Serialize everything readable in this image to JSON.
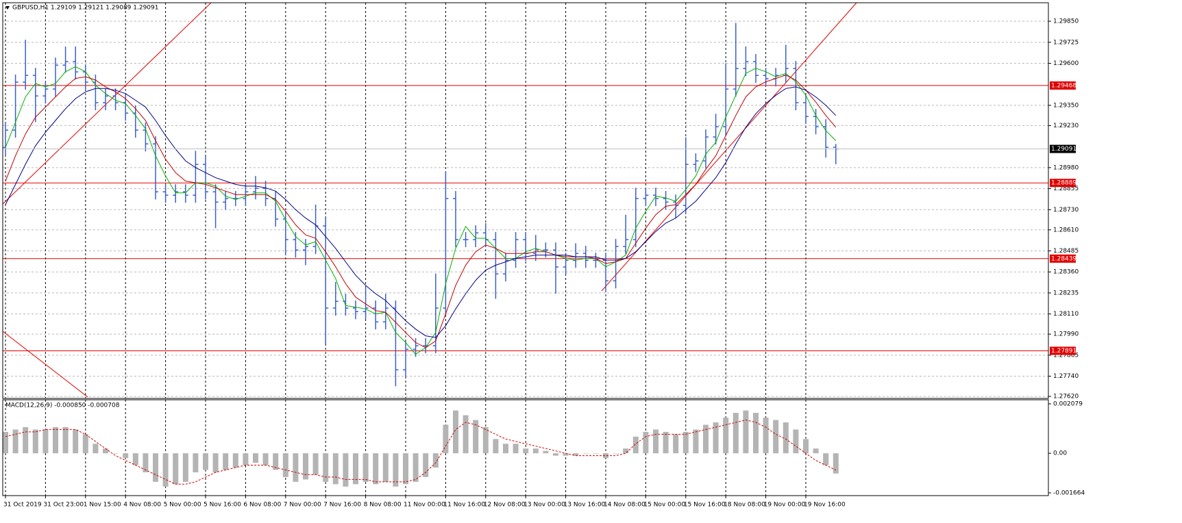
{
  "chart_data": [
    {
      "type": "ohlc",
      "title": "GBPUSD,H1  1.29109 1.29121 1.29089 1.29091",
      "color": "#3a5fcd",
      "categories": [
        "31 Oct 2019",
        null,
        null,
        null,
        "31 Oct 23:00",
        null,
        null,
        null,
        "1 Nov 15:00",
        null,
        null,
        null,
        "4 Nov 08:00",
        null,
        null,
        null,
        "5 Nov 00:00",
        null,
        null,
        null,
        "5 Nov 16:00",
        null,
        null,
        null,
        "6 Nov 08:00",
        null,
        null,
        null,
        "7 Nov 00:00",
        null,
        null,
        null,
        "7 Nov 16:00",
        null,
        null,
        null,
        "8 Nov 08:00",
        null,
        null,
        null,
        "11 Nov 00:00",
        null,
        null,
        null,
        "11 Nov 16:00",
        null,
        null,
        null,
        "12 Nov 08:00",
        null,
        null,
        null,
        "13 Nov 00:00",
        null,
        null,
        null,
        "13 Nov 16:00",
        null,
        null,
        null,
        "14 Nov 08:00",
        null,
        null,
        null,
        "15 Nov 00:00",
        null,
        null,
        null,
        "15 Nov 16:00",
        null,
        null,
        null,
        "18 Nov 08:00",
        null,
        null,
        null,
        "19 Nov 00:00",
        null,
        null,
        null,
        "19 Nov 16:00",
        null,
        null,
        null
      ],
      "open": [
        1.291,
        1.29203,
        1.29488,
        1.29528,
        1.29406,
        1.29447,
        1.29589,
        1.2961,
        1.29549,
        1.29488,
        1.29366,
        1.29406,
        1.29366,
        1.29304,
        1.29203,
        1.29121,
        1.28836,
        1.28816,
        1.28836,
        1.28816,
        1.28999,
        1.28836,
        1.28775,
        1.28796,
        1.28796,
        1.28836,
        1.28857,
        1.28796,
        1.28674,
        1.28552,
        1.2849,
        1.28511,
        1.28633,
        1.28145,
        1.28185,
        1.28145,
        1.28124,
        1.28145,
        1.28063,
        1.28145,
        1.27778,
        1.279,
        1.27921,
        1.27921,
        1.28145,
        1.28796,
        1.28552,
        1.28552,
        1.28592,
        1.28552,
        1.28348,
        1.28429,
        1.28552,
        1.2847,
        1.2849,
        1.2849,
        1.28389,
        1.28429,
        1.2847,
        1.28429,
        1.28429,
        1.28307,
        1.28511,
        1.28552,
        1.28796,
        1.28816,
        1.28796,
        1.28775,
        1.28755,
        1.28999,
        1.2902,
        1.29162,
        1.29223,
        1.29447,
        1.29569,
        1.2961,
        1.29528,
        1.29508,
        1.29528,
        1.29569,
        1.29366,
        1.29284,
        1.29223,
        1.29101
      ],
      "high": [
        1.29248,
        1.29533,
        1.2974,
        1.29573,
        1.29492,
        1.29634,
        1.297,
        1.297,
        1.29594,
        1.29533,
        1.29451,
        1.29451,
        1.29411,
        1.29349,
        1.29248,
        1.29166,
        1.28881,
        1.28881,
        1.28881,
        1.2908,
        1.29044,
        1.28881,
        1.28841,
        1.28841,
        1.28881,
        1.2893,
        1.28902,
        1.28841,
        1.28719,
        1.28597,
        1.28556,
        1.2876,
        1.28678,
        1.283,
        1.2823,
        1.2819,
        1.2827,
        1.2819,
        1.2823,
        1.2819,
        1.27945,
        1.27966,
        1.27966,
        1.2835,
        1.28958,
        1.28841,
        1.28597,
        1.28637,
        1.2865,
        1.28597,
        1.28474,
        1.28597,
        1.28597,
        1.2858,
        1.28535,
        1.28535,
        1.28474,
        1.2853,
        1.28515,
        1.28474,
        1.28474,
        1.28556,
        1.287,
        1.2886,
        1.28861,
        1.28861,
        1.28841,
        1.2882,
        1.2916,
        1.29065,
        1.29207,
        1.293,
        1.296,
        1.2984,
        1.297,
        1.29655,
        1.29573,
        1.29573,
        1.2971,
        1.29614,
        1.29411,
        1.29329,
        1.29268,
        1.29121
      ],
      "low": [
        1.29055,
        1.29158,
        1.29443,
        1.2925,
        1.29361,
        1.29402,
        1.29544,
        1.29504,
        1.29443,
        1.29321,
        1.29321,
        1.29321,
        1.29259,
        1.29158,
        1.29076,
        1.28791,
        1.28771,
        1.28771,
        1.28771,
        1.28771,
        1.28791,
        1.2862,
        1.2873,
        1.28751,
        1.28751,
        1.28791,
        1.28751,
        1.28629,
        1.2846,
        1.28445,
        1.284,
        1.28466,
        1.2793,
        1.281,
        1.281,
        1.28079,
        1.28079,
        1.28018,
        1.28018,
        1.2768,
        1.27733,
        1.27855,
        1.27876,
        1.27876,
        1.281,
        1.28507,
        1.28507,
        1.28507,
        1.28507,
        1.282,
        1.28303,
        1.28384,
        1.28425,
        1.28425,
        1.28445,
        1.2823,
        1.28344,
        1.28384,
        1.28384,
        1.28384,
        1.2824,
        1.28262,
        1.28466,
        1.28507,
        1.28751,
        1.28751,
        1.2873,
        1.2868,
        1.2871,
        1.28954,
        1.28975,
        1.29117,
        1.29178,
        1.29402,
        1.29524,
        1.29483,
        1.29463,
        1.29463,
        1.29483,
        1.29321,
        1.29239,
        1.29178,
        1.2904,
        1.29
      ],
      "close": [
        1.29203,
        1.29488,
        1.29528,
        1.29406,
        1.29447,
        1.29589,
        1.2961,
        1.29549,
        1.29488,
        1.29366,
        1.29406,
        1.29366,
        1.29304,
        1.29203,
        1.29121,
        1.28836,
        1.28816,
        1.28836,
        1.28816,
        1.28999,
        1.28836,
        1.28775,
        1.28796,
        1.28796,
        1.28836,
        1.28857,
        1.28796,
        1.28674,
        1.28552,
        1.2849,
        1.28511,
        1.28633,
        1.28145,
        1.28185,
        1.28145,
        1.28124,
        1.28145,
        1.28063,
        1.28145,
        1.27778,
        1.279,
        1.27921,
        1.27921,
        1.28145,
        1.28796,
        1.28552,
        1.28552,
        1.28592,
        1.28552,
        1.28348,
        1.28429,
        1.28552,
        1.2847,
        1.2849,
        1.2849,
        1.28389,
        1.28429,
        1.2847,
        1.28429,
        1.28429,
        1.28307,
        1.28511,
        1.28552,
        1.28796,
        1.28816,
        1.28796,
        1.28775,
        1.28755,
        1.28999,
        1.2902,
        1.29162,
        1.29223,
        1.29447,
        1.29569,
        1.2961,
        1.29528,
        1.29508,
        1.29528,
        1.29569,
        1.29366,
        1.29284,
        1.29223,
        1.29101,
        1.29091
      ],
      "moving_averages": [
        {
          "color": "#00b000",
          "values": [
            1.291,
            1.2925,
            1.294,
            1.2948,
            1.2946,
            1.2948,
            1.2955,
            1.2958,
            1.2955,
            1.2947,
            1.2942,
            1.2938,
            1.2936,
            1.2929,
            1.2921,
            1.2905,
            1.2893,
            1.2883,
            1.2883,
            1.2889,
            1.2889,
            1.2887,
            1.2881,
            1.2879,
            1.2881,
            1.2883,
            1.2883,
            1.2878,
            1.2867,
            1.2857,
            1.2852,
            1.2854,
            1.2843,
            1.2832,
            1.2816,
            1.2815,
            1.2814,
            1.2811,
            1.2812,
            1.28,
            1.2794,
            1.2787,
            1.2791,
            1.28,
            1.2829,
            1.285,
            1.2863,
            1.2856,
            1.2856,
            1.285,
            1.2844,
            1.2844,
            1.2848,
            1.285,
            1.2848,
            1.2846,
            1.2844,
            1.2843,
            1.2844,
            1.2844,
            1.2839,
            1.2842,
            1.2846,
            1.2862,
            1.2872,
            1.2881,
            1.288,
            1.2878,
            1.2885,
            1.2893,
            1.2906,
            1.2913,
            1.2928,
            1.2941,
            1.2954,
            1.2957,
            1.2955,
            1.2952,
            1.2954,
            1.2949,
            1.2941,
            1.2929,
            1.292,
            1.2914
          ]
        },
        {
          "color": "#c00000",
          "values": [
            1.289,
            1.2905,
            1.2918,
            1.2928,
            1.2934,
            1.294,
            1.2946,
            1.2951,
            1.2952,
            1.295,
            1.2946,
            1.2943,
            1.2939,
            1.2933,
            1.2926,
            1.2914,
            1.2903,
            1.2895,
            1.289,
            1.2889,
            1.2888,
            1.2886,
            1.2884,
            1.2882,
            1.2882,
            1.2882,
            1.2882,
            1.2879,
            1.2872,
            1.2864,
            1.2858,
            1.2856,
            1.2848,
            1.2839,
            1.2829,
            1.2821,
            1.2817,
            1.2813,
            1.2812,
            1.2806,
            1.28,
            1.2794,
            1.2791,
            1.2795,
            1.2811,
            1.2828,
            1.284,
            1.2848,
            1.2852,
            1.285,
            1.2847,
            1.2847,
            1.2847,
            1.2848,
            1.2848,
            1.2846,
            1.2845,
            1.2845,
            1.2845,
            1.2844,
            1.2841,
            1.2842,
            1.2844,
            1.2853,
            1.2862,
            1.287,
            1.2875,
            1.2876,
            1.2882,
            1.2888,
            1.2897,
            1.2905,
            1.2917,
            1.2929,
            1.294,
            1.2946,
            1.2949,
            1.2951,
            1.2953,
            1.295,
            1.2944,
            1.2937,
            1.2929,
            1.2922
          ]
        },
        {
          "color": "#00008b",
          "values": [
            1.2876,
            1.2888,
            1.29,
            1.2911,
            1.2919,
            1.2926,
            1.2933,
            1.2939,
            1.2943,
            1.2945,
            1.2945,
            1.2944,
            1.2942,
            1.2938,
            1.2934,
            1.2926,
            1.2917,
            1.2909,
            1.2902,
            1.2898,
            1.2895,
            1.2892,
            1.289,
            1.2888,
            1.2887,
            1.2887,
            1.2886,
            1.2884,
            1.2879,
            1.2873,
            1.2868,
            1.2864,
            1.2857,
            1.285,
            1.2842,
            1.2834,
            1.2828,
            1.2823,
            1.2819,
            1.2813,
            1.2807,
            1.2802,
            1.2798,
            1.2797,
            1.2804,
            1.2814,
            1.2823,
            1.2831,
            1.2837,
            1.284,
            1.2842,
            1.2844,
            1.2845,
            1.2846,
            1.2846,
            1.2846,
            1.2846,
            1.2845,
            1.2845,
            1.2845,
            1.2843,
            1.2843,
            1.2844,
            1.2848,
            1.2854,
            1.286,
            1.2865,
            1.2868,
            1.2873,
            1.2878,
            1.2885,
            1.2892,
            1.2901,
            1.2912,
            1.2922,
            1.293,
            1.2936,
            1.2941,
            1.2945,
            1.2946,
            1.2944,
            1.294,
            1.2935,
            1.2929
          ]
        }
      ],
      "ylim": [
        1.27608,
        1.2996
      ],
      "yticks": [
        {
          "value": 1.2985,
          "label": "1.29850"
        },
        {
          "value": 1.29725,
          "label": "1.29725"
        },
        {
          "value": 1.296,
          "label": "1.29600"
        },
        {
          "value": 1.2935,
          "label": "1.29350"
        },
        {
          "value": 1.2923,
          "label": "1.29230"
        },
        {
          "value": 1.2898,
          "label": "1.28980"
        },
        {
          "value": 1.28855,
          "label": "1.28855"
        },
        {
          "value": 1.2873,
          "label": "1.28730"
        },
        {
          "value": 1.2861,
          "label": "1.28610"
        },
        {
          "value": 1.28485,
          "label": "1.28485"
        },
        {
          "value": 1.2836,
          "label": "1.28360"
        },
        {
          "value": 1.28235,
          "label": "1.28235"
        },
        {
          "value": 1.2811,
          "label": "1.28110"
        },
        {
          "value": 1.2799,
          "label": "1.27990"
        },
        {
          "value": 1.27865,
          "label": "1.27865"
        },
        {
          "value": 1.2774,
          "label": "1.27740"
        },
        {
          "value": 1.2762,
          "label": "1.27620"
        }
      ],
      "levels": [
        {
          "value": 1.29468,
          "label": "1.29468"
        },
        {
          "value": 1.28889,
          "label": "1.28889"
        },
        {
          "value": 1.28439,
          "label": "1.28439"
        },
        {
          "value": 1.27891,
          "label": "1.27891"
        }
      ],
      "level_color": "#e00000",
      "current_price": {
        "value": 1.29091,
        "label": "1.29091"
      },
      "grid": true
    },
    {
      "type": "macd",
      "title": "MACD(12,26,9) -0.000850 -0.000708",
      "histogram": {
        "color": "#b4b4b4",
        "values": [
          0.0009,
          0.001,
          0.0011,
          0.001,
          0.001,
          0.0011,
          0.0011,
          0.001,
          0.0008,
          0.0004,
          0.0002,
          0.0,
          -0.0002,
          -0.0005,
          -0.0008,
          -0.0012,
          -0.0014,
          -0.0013,
          -0.0012,
          -0.0008,
          -0.0007,
          -0.0008,
          -0.0007,
          -0.0006,
          -0.0005,
          -0.0004,
          -0.0005,
          -0.0007,
          -0.001,
          -0.0012,
          -0.0011,
          -0.0009,
          -0.0012,
          -0.0013,
          -0.0014,
          -0.0013,
          -0.0012,
          -0.0013,
          -0.0012,
          -0.0014,
          -0.0013,
          -0.0012,
          -0.001,
          -0.0006,
          0.0012,
          0.0018,
          0.0016,
          0.0014,
          0.0011,
          0.0006,
          0.0004,
          0.0004,
          0.0002,
          0.0002,
          0.0001,
          -0.0001,
          -0.0001,
          -0.0001,
          0.0,
          0.0,
          -0.0002,
          0.0,
          0.0002,
          0.0007,
          0.0009,
          0.001,
          0.0009,
          0.0008,
          0.0009,
          0.001,
          0.0012,
          0.0013,
          0.0015,
          0.0017,
          0.0018,
          0.0017,
          0.0015,
          0.0014,
          0.0013,
          0.001,
          0.0006,
          0.0002,
          -0.0005,
          -0.00085
        ]
      },
      "signal": {
        "color": "#d00000",
        "values": [
          0.0007,
          0.0008,
          0.0009,
          0.0009,
          0.001,
          0.001,
          0.001,
          0.001,
          0.0008,
          0.0005,
          0.0002,
          -0.0001,
          -0.0003,
          -0.0005,
          -0.0007,
          -0.0009,
          -0.0011,
          -0.0013,
          -0.0013,
          -0.0012,
          -0.001,
          -0.0008,
          -0.0007,
          -0.0006,
          -0.0005,
          -0.0005,
          -0.0005,
          -0.0006,
          -0.0007,
          -0.0008,
          -0.0009,
          -0.0009,
          -0.001,
          -0.001,
          -0.0011,
          -0.0011,
          -0.0011,
          -0.0012,
          -0.0012,
          -0.0012,
          -0.0012,
          -0.0011,
          -0.0008,
          -0.0004,
          0.0003,
          0.001,
          0.0013,
          0.0012,
          0.001,
          0.0008,
          0.0006,
          0.0005,
          0.0004,
          0.0003,
          0.0002,
          0.0001,
          0.0,
          -0.0001,
          -0.0001,
          -0.0001,
          -0.0001,
          -0.0001,
          0.0,
          0.0004,
          0.0007,
          0.0008,
          0.0008,
          0.0008,
          0.0008,
          0.0009,
          0.001,
          0.0011,
          0.0012,
          0.0013,
          0.0014,
          0.0013,
          0.0011,
          0.0008,
          0.0006,
          0.0003,
          0.0,
          -0.0003,
          -0.0005,
          -0.000708
        ]
      },
      "ylim": [
        -0.00178,
        0.00225
      ],
      "yticks": [
        {
          "value": 0.002079,
          "label": "0.002079"
        },
        {
          "value": 0,
          "label": "0.00"
        },
        {
          "value": -0.001664,
          "label": "-0.001664"
        }
      ]
    }
  ]
}
